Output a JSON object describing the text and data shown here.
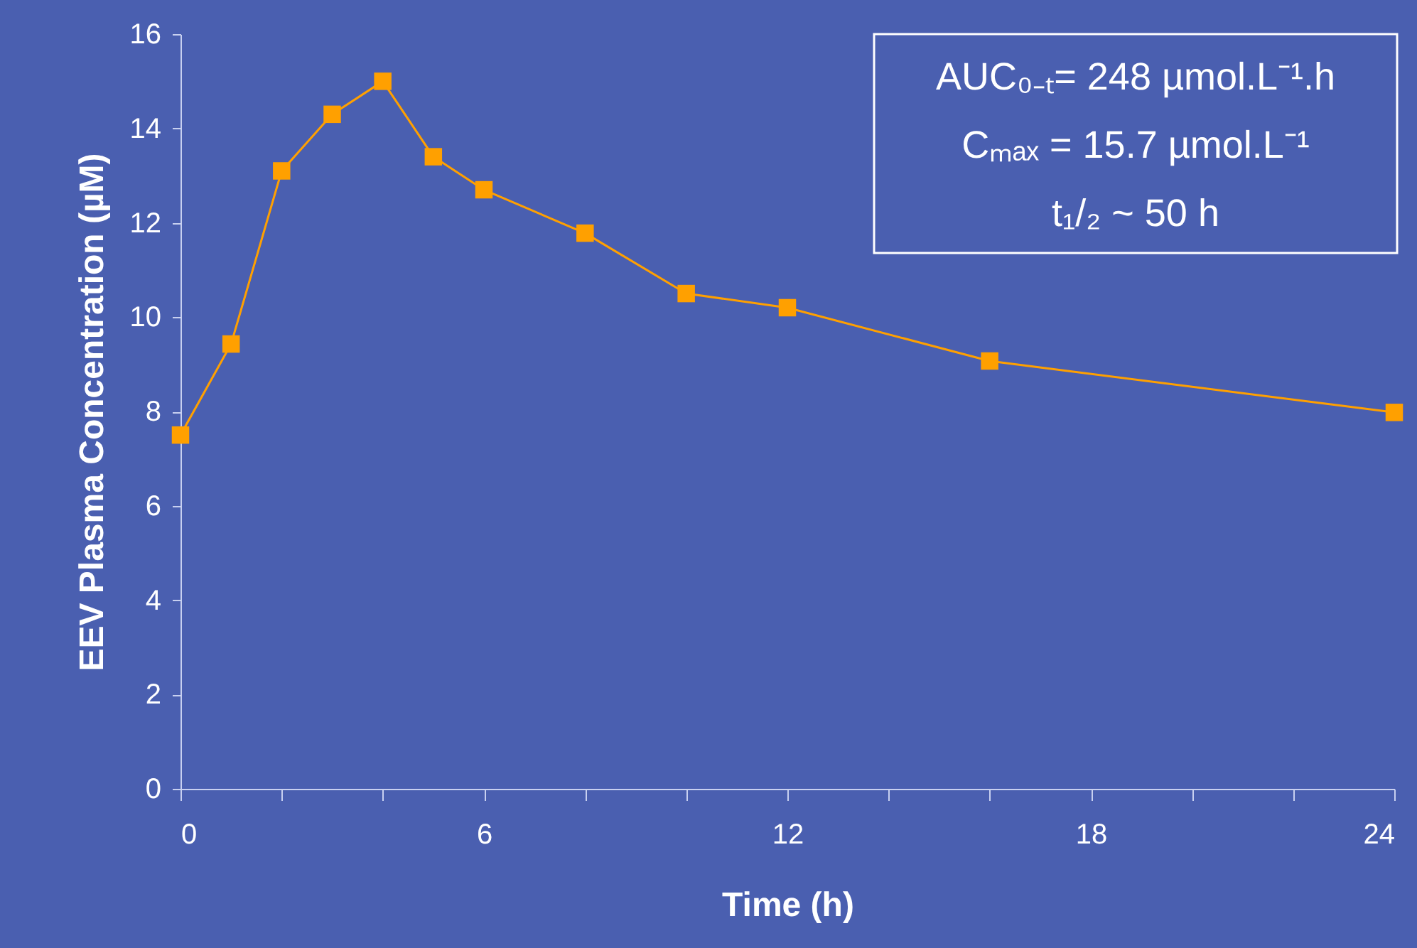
{
  "chart_data": {
    "type": "line",
    "xlabel": "Time (h)",
    "ylabel": "EEV Plasma Concentration (µM)",
    "x": [
      0,
      1,
      2,
      3,
      4,
      5,
      6,
      8,
      10,
      12,
      16,
      24
    ],
    "series": [
      {
        "color": "#ffa000",
        "values": [
          7.5,
          9.43,
          13.1,
          14.3,
          15.0,
          13.4,
          12.7,
          11.78,
          10.5,
          10.2,
          9.07,
          7.98
        ]
      }
    ],
    "xlim": [
      0,
      24
    ],
    "xticks": [
      0,
      {
        "value": 2,
        "label": null
      },
      {
        "value": 4,
        "label": null
      },
      6,
      {
        "value": 8,
        "label": null
      },
      {
        "value": 10,
        "label": null
      },
      12,
      {
        "value": 14,
        "label": null
      },
      {
        "value": 16,
        "label": null
      },
      18,
      {
        "value": 20,
        "label": null
      },
      {
        "value": 22,
        "label": null
      },
      24
    ],
    "ylim": [
      0,
      16
    ],
    "yticks": [
      0,
      2,
      4,
      6,
      8,
      10,
      12,
      14,
      16
    ],
    "marker": "square",
    "line_style": "solid",
    "grid": false,
    "annotations": [
      "AUC₀₋ₜ= 248 µmol.L⁻¹.h",
      "Cₘₐₓ = 15.7 µmol.L⁻¹",
      "t₁/₂  ~ 50 h"
    ]
  }
}
